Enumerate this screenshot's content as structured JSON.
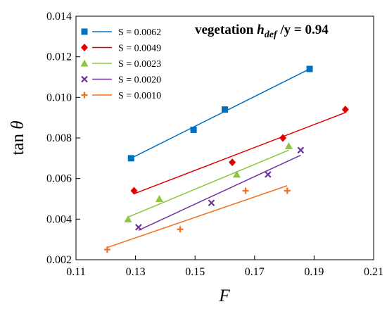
{
  "chart_data": {
    "type": "scatter",
    "title": "",
    "xlabel": "F",
    "ylabel": "tan θ",
    "ylabel_parts": {
      "base": "tan ",
      "symbol": "θ"
    },
    "xlim": [
      0.11,
      0.21
    ],
    "ylim": [
      0.002,
      0.014
    ],
    "xticks": [
      "0.11",
      "0.13",
      "0.15",
      "0.17",
      "0.19",
      "0.21"
    ],
    "yticks": [
      "0.002",
      "0.004",
      "0.006",
      "0.008",
      "0.010",
      "0.012",
      "0.014"
    ],
    "grid": false,
    "legend_placement": "top-left",
    "annotation": {
      "prefix": "vegetation ",
      "var": "h",
      "sub": "def",
      "suffix": " /y = 0.94"
    },
    "series": [
      {
        "name": "S = 0.0062",
        "color": "#0070C0",
        "marker": "square",
        "x": [
          0.1285,
          0.1495,
          0.16,
          0.1885
        ],
        "y": [
          0.007,
          0.0084,
          0.0094,
          0.0114
        ],
        "fit": {
          "x": [
            0.1285,
            0.1885
          ],
          "y": [
            0.007,
            0.0114
          ]
        }
      },
      {
        "name": "S = 0.0049",
        "color": "#E00000",
        "marker": "diamond",
        "x": [
          0.1295,
          0.1625,
          0.1795,
          0.2005
        ],
        "y": [
          0.0054,
          0.0068,
          0.008,
          0.0094
        ],
        "fit": {
          "x": [
            0.1295,
            0.2005
          ],
          "y": [
            0.00525,
            0.00925
          ]
        }
      },
      {
        "name": "S = 0.0023",
        "color": "#8DC63F",
        "marker": "triangle",
        "x": [
          0.1275,
          0.138,
          0.164,
          0.1815
        ],
        "y": [
          0.004,
          0.005,
          0.0062,
          0.0076
        ],
        "fit": {
          "x": [
            0.1275,
            0.1815
          ],
          "y": [
            0.0041,
            0.0074
          ]
        }
      },
      {
        "name": "S = 0.0020",
        "color": "#7030A0",
        "marker": "x",
        "x": [
          0.131,
          0.1555,
          0.1745,
          0.1855
        ],
        "y": [
          0.0036,
          0.0048,
          0.0062,
          0.0074
        ],
        "fit": {
          "x": [
            0.131,
            0.1855
          ],
          "y": [
            0.00345,
            0.00715
          ]
        }
      },
      {
        "name": "S = 0.0010",
        "color": "#F07020",
        "marker": "plus",
        "x": [
          0.1205,
          0.145,
          0.167,
          0.181
        ],
        "y": [
          0.0025,
          0.0035,
          0.0054,
          0.0054
        ],
        "fit": {
          "x": [
            0.1205,
            0.181
          ],
          "y": [
            0.0026,
            0.00565
          ]
        }
      }
    ]
  }
}
